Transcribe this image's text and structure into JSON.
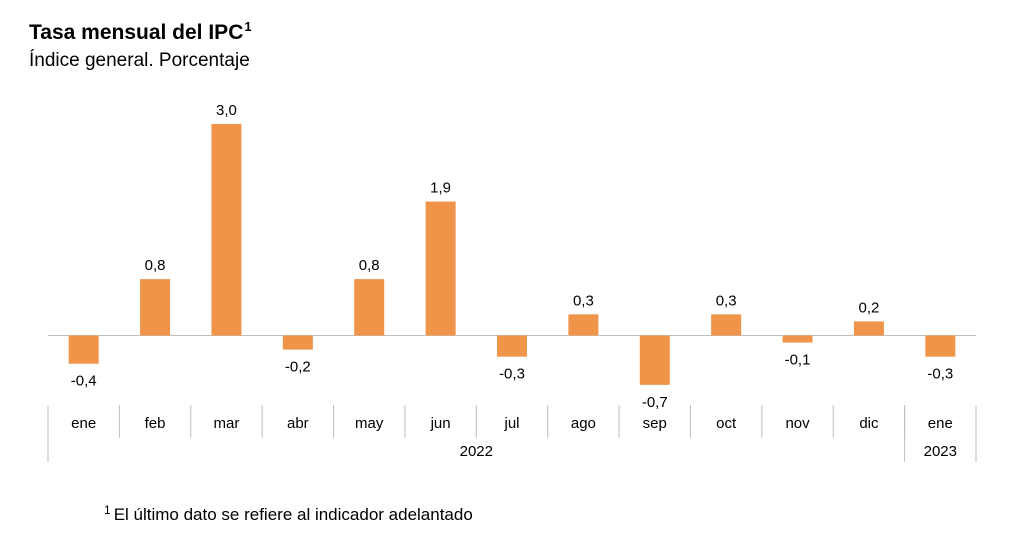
{
  "header": {
    "title": "Tasa mensual del IPC",
    "title_sup": "1",
    "subtitle": "Índice general. Porcentaje"
  },
  "footnote": {
    "mark": "1",
    "text": "El último dato se refiere al indicador adelantado"
  },
  "chart_data": {
    "type": "bar",
    "title": "Tasa mensual del IPC",
    "subtitle": "Índice general. Porcentaje",
    "categories": [
      "ene",
      "feb",
      "mar",
      "abr",
      "may",
      "jun",
      "jul",
      "ago",
      "sep",
      "oct",
      "nov",
      "dic",
      "ene"
    ],
    "values": [
      -0.4,
      0.8,
      3.0,
      -0.2,
      0.8,
      1.9,
      -0.3,
      0.3,
      -0.7,
      0.3,
      -0.1,
      0.2,
      -0.3
    ],
    "value_labels": [
      "-0,4",
      "0,8",
      "3,0",
      "-0,2",
      "0,8",
      "1,9",
      "-0,3",
      "0,3",
      "-0,7",
      "0,3",
      "-0,1",
      "0,2",
      "-0,3"
    ],
    "year_groups": [
      {
        "label": "2022",
        "count": 12
      },
      {
        "label": "2023",
        "count": 1
      }
    ],
    "bar_color": "#F0944A",
    "axis_color": "#BFBFBF",
    "ylim": [
      -0.7,
      3.0
    ],
    "grid": false,
    "legend": "none"
  }
}
